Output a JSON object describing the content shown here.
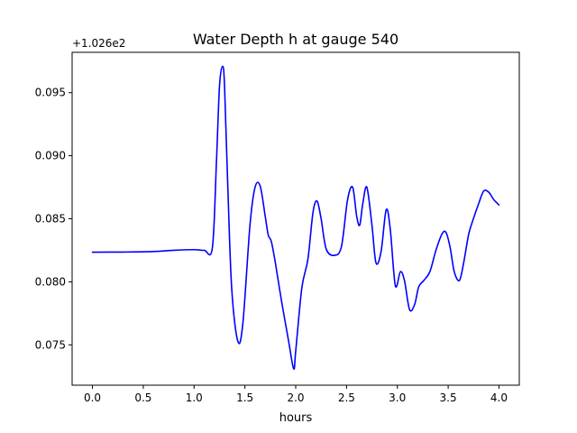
{
  "chart_data": {
    "type": "line",
    "title": "Water Depth h at gauge 540",
    "xlabel": "hours",
    "ylabel": "",
    "offset_text": "+1.026e2",
    "xlim": [
      -0.2,
      4.2
    ],
    "ylim": [
      0.0718,
      0.0982
    ],
    "x_ticks": [
      0.0,
      0.5,
      1.0,
      1.5,
      2.0,
      2.5,
      3.0,
      3.5,
      4.0
    ],
    "x_tick_labels": [
      "0.0",
      "0.5",
      "1.0",
      "1.5",
      "2.0",
      "2.5",
      "3.0",
      "3.5",
      "4.0"
    ],
    "y_ticks": [
      0.075,
      0.08,
      0.085,
      0.09,
      0.095
    ],
    "y_tick_labels": [
      "0.075",
      "0.080",
      "0.085",
      "0.090",
      "0.095"
    ],
    "grid": false,
    "legend": "none",
    "series": [
      {
        "color": "#0000ff",
        "x": [
          0.0,
          0.3,
          0.6,
          0.8,
          1.0,
          1.1,
          1.18,
          1.22,
          1.25,
          1.28,
          1.3,
          1.33,
          1.37,
          1.43,
          1.48,
          1.55,
          1.6,
          1.65,
          1.7,
          1.73,
          1.76,
          1.8,
          1.86,
          1.93,
          1.98,
          2.0,
          2.06,
          2.12,
          2.17,
          2.21,
          2.25,
          2.3,
          2.38,
          2.45,
          2.51,
          2.56,
          2.6,
          2.63,
          2.66,
          2.7,
          2.75,
          2.79,
          2.84,
          2.89,
          2.93,
          2.98,
          3.03,
          3.07,
          3.12,
          3.17,
          3.21,
          3.26,
          3.32,
          3.38,
          3.44,
          3.48,
          3.52,
          3.56,
          3.61,
          3.65,
          3.7,
          3.74,
          3.8,
          3.85,
          3.9,
          3.95,
          4.0
        ],
        "y": [
          0.08235,
          0.08236,
          0.0824,
          0.0825,
          0.08255,
          0.0825,
          0.0827,
          0.0895,
          0.0955,
          0.0971,
          0.0955,
          0.088,
          0.0795,
          0.0753,
          0.0767,
          0.0845,
          0.0875,
          0.0876,
          0.0852,
          0.0837,
          0.0832,
          0.0815,
          0.0785,
          0.0753,
          0.0731,
          0.0745,
          0.0795,
          0.0818,
          0.0855,
          0.0864,
          0.085,
          0.0826,
          0.0821,
          0.0828,
          0.0865,
          0.0875,
          0.0852,
          0.0845,
          0.0862,
          0.0875,
          0.0845,
          0.0815,
          0.0824,
          0.0857,
          0.0842,
          0.0797,
          0.0808,
          0.0801,
          0.0778,
          0.0782,
          0.0796,
          0.0801,
          0.0808,
          0.0825,
          0.0838,
          0.0839,
          0.0827,
          0.0808,
          0.0801,
          0.0814,
          0.0837,
          0.0848,
          0.0862,
          0.0872,
          0.0871,
          0.0865,
          0.0861
        ]
      }
    ]
  }
}
